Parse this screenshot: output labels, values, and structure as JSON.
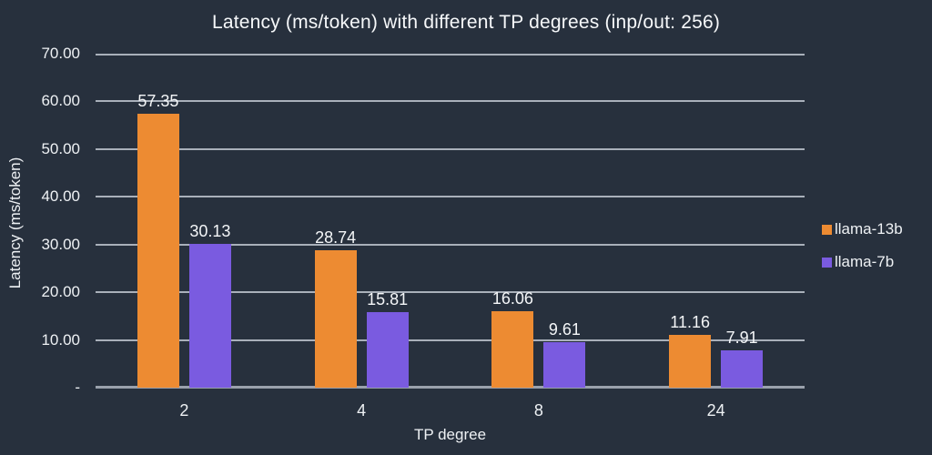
{
  "colors": {
    "background": "#27303d",
    "gridline": "#a9b0ba",
    "axis_line": "#9aa1ac",
    "text": "#f3f5f7"
  },
  "chart_data": {
    "type": "bar",
    "title": "Latency (ms/token) with different TP degrees (inp/out: 256)",
    "xlabel": "TP degree",
    "ylabel": "Latency (ms/token)",
    "categories": [
      "2",
      "4",
      "8",
      "24"
    ],
    "series": [
      {
        "name": "llama-13b",
        "color": "#ed8b32",
        "values": [
          57.35,
          28.74,
          16.06,
          11.16
        ]
      },
      {
        "name": "llama-7b",
        "color": "#7a5be0",
        "values": [
          30.13,
          15.81,
          9.61,
          7.91
        ]
      }
    ],
    "ylim": [
      0,
      70
    ],
    "ytick_step": 10,
    "ytick_labels": [
      "-",
      "10.00",
      "20.00",
      "30.00",
      "40.00",
      "50.00",
      "60.00",
      "70.00"
    ],
    "grid": true,
    "value_labels": true,
    "legend_position": "right"
  }
}
